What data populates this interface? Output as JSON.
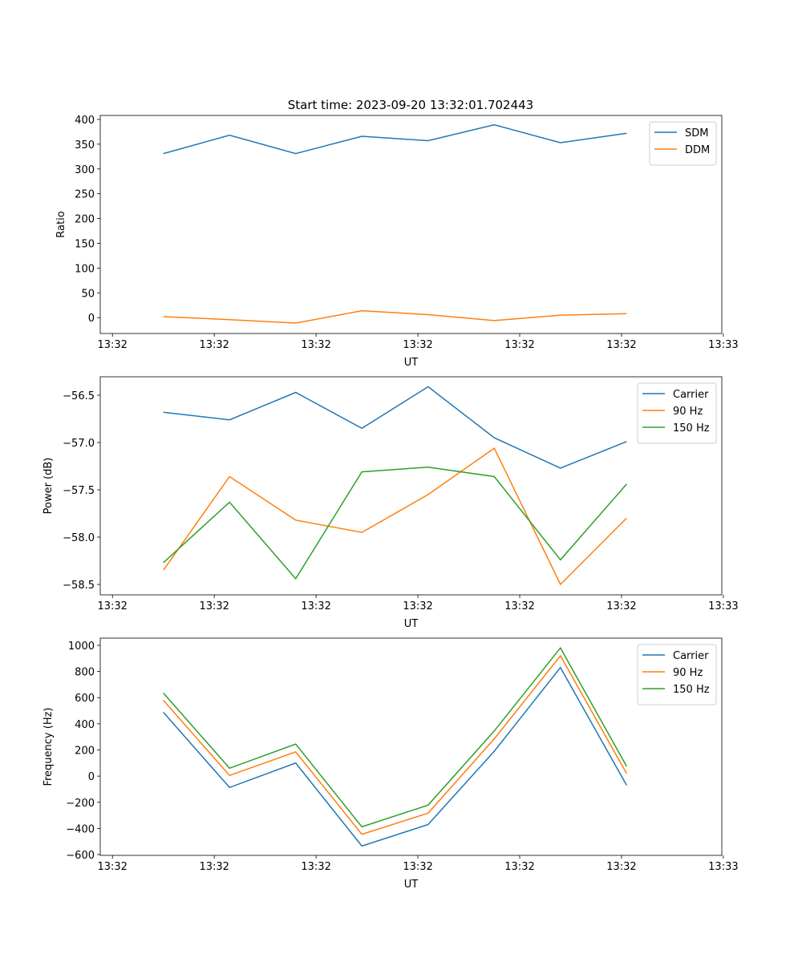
{
  "title": "Start time: 2023-09-20 13:32:01.702443",
  "colors": {
    "c0": "#1f77b4",
    "c1": "#ff7f0e",
    "c2": "#2ca02c"
  },
  "chart_data": [
    {
      "type": "line",
      "xlabel": "UT",
      "ylabel": "Ratio",
      "x": [
        1.0,
        2.3,
        3.6,
        4.9,
        6.2,
        7.5,
        8.8,
        10.1
      ],
      "xlim": [
        -0.24,
        11.97
      ],
      "xticks": [
        0,
        2,
        4,
        6,
        8,
        10,
        12
      ],
      "xtick_labels": [
        "13:32",
        "13:32",
        "13:32",
        "13:32",
        "13:32",
        "13:32",
        "13:33"
      ],
      "ylim": [
        -32,
        408
      ],
      "yticks": [
        0,
        50,
        100,
        150,
        200,
        250,
        300,
        350,
        400
      ],
      "ytick_labels": [
        "0",
        "50",
        "100",
        "150",
        "200",
        "250",
        "300",
        "350",
        "400"
      ],
      "legend": "top-right",
      "series": [
        {
          "name": "SDM",
          "color": "#1f77b4",
          "values": [
            331,
            368,
            331,
            366,
            357,
            389,
            353,
            372
          ]
        },
        {
          "name": "DDM",
          "color": "#ff7f0e",
          "values": [
            2,
            -4,
            -11,
            14,
            6,
            -6,
            5,
            8
          ]
        }
      ]
    },
    {
      "type": "line",
      "xlabel": "UT",
      "ylabel": "Power (dB)",
      "x": [
        1.0,
        2.3,
        3.6,
        4.9,
        6.2,
        7.5,
        8.8,
        10.1
      ],
      "xlim": [
        -0.24,
        11.97
      ],
      "xticks": [
        0,
        2,
        4,
        6,
        8,
        10,
        12
      ],
      "xtick_labels": [
        "13:32",
        "13:32",
        "13:32",
        "13:32",
        "13:32",
        "13:32",
        "13:33"
      ],
      "ylim": [
        -58.61,
        -56.305
      ],
      "yticks": [
        -58.5,
        -58.0,
        -57.5,
        -57.0,
        -56.5
      ],
      "ytick_labels": [
        "−58.5",
        "−58.0",
        "−57.5",
        "−57.0",
        "−56.5"
      ],
      "legend": "top-right",
      "series": [
        {
          "name": "Carrier",
          "color": "#1f77b4",
          "values": [
            -56.68,
            -56.76,
            -56.47,
            -56.85,
            -56.41,
            -56.95,
            -57.27,
            -56.99
          ]
        },
        {
          "name": "90 Hz",
          "color": "#ff7f0e",
          "values": [
            -58.35,
            -57.36,
            -57.82,
            -57.95,
            -57.55,
            -57.06,
            -58.5,
            -57.8
          ]
        },
        {
          "name": "150 Hz",
          "color": "#2ca02c",
          "values": [
            -58.27,
            -57.63,
            -58.44,
            -57.31,
            -57.26,
            -57.36,
            -58.24,
            -57.44
          ]
        }
      ]
    },
    {
      "type": "line",
      "xlabel": "UT",
      "ylabel": "Frequency (Hz)",
      "x": [
        1.0,
        2.3,
        3.6,
        4.9,
        6.2,
        7.5,
        8.8,
        10.1
      ],
      "xlim": [
        -0.24,
        11.97
      ],
      "xticks": [
        0,
        2,
        4,
        6,
        8,
        10,
        12
      ],
      "xtick_labels": [
        "13:32",
        "13:32",
        "13:32",
        "13:32",
        "13:32",
        "13:32",
        "13:33"
      ],
      "ylim": [
        -606,
        1055
      ],
      "yticks": [
        -600,
        -400,
        -200,
        0,
        200,
        400,
        600,
        800,
        1000
      ],
      "ytick_labels": [
        "−600",
        "−400",
        "−200",
        "0",
        "200",
        "400",
        "600",
        "800",
        "1000"
      ],
      "legend": "top-right",
      "series": [
        {
          "name": "Carrier",
          "color": "#1f77b4",
          "values": [
            488,
            -87,
            100,
            -535,
            -370,
            190,
            830,
            -70
          ]
        },
        {
          "name": "90 Hz",
          "color": "#ff7f0e",
          "values": [
            580,
            5,
            185,
            -445,
            -283,
            285,
            920,
            20
          ]
        },
        {
          "name": "150 Hz",
          "color": "#2ca02c",
          "values": [
            635,
            60,
            245,
            -388,
            -222,
            345,
            980,
            75
          ]
        }
      ]
    }
  ]
}
